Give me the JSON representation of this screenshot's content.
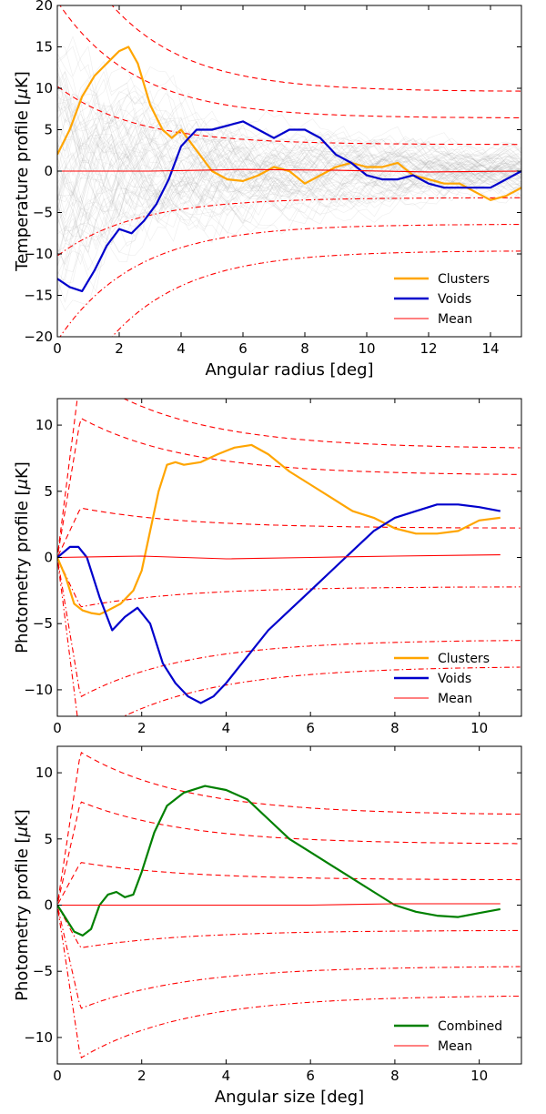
{
  "chart_data": [
    {
      "type": "line",
      "xlabel": "Angular radius [deg]",
      "ylabel": "Temperature profile [$\\mu$K]",
      "xlim": [
        0,
        15
      ],
      "ylim": [
        -20,
        20
      ],
      "xticks": [
        0,
        2,
        4,
        6,
        8,
        10,
        12,
        14
      ],
      "yticks": [
        -20,
        -15,
        -10,
        -5,
        0,
        5,
        10,
        15,
        20
      ],
      "legend": "lower-right",
      "background_simulations": true,
      "series": [
        {
          "name": "Clusters",
          "color": "#FFA500",
          "x": [
            0,
            0.4,
            0.8,
            1.2,
            1.6,
            2.0,
            2.3,
            2.6,
            3.0,
            3.4,
            3.7,
            4.0,
            4.5,
            5.0,
            5.5,
            6.0,
            6.5,
            7.0,
            7.5,
            8.0,
            8.5,
            9.0,
            9.5,
            10.0,
            10.5,
            11.0,
            11.5,
            12.0,
            12.5,
            13.0,
            13.5,
            14.0,
            14.5,
            15.0
          ],
          "y": [
            2,
            5,
            9,
            11.5,
            13,
            14.5,
            15,
            13,
            8,
            5,
            4,
            5,
            2.5,
            0,
            -1,
            -1.2,
            -0.5,
            0.5,
            0,
            -1.5,
            -0.5,
            0.5,
            1,
            0.5,
            0.5,
            1,
            -0.5,
            -1,
            -1.5,
            -1.5,
            -2.5,
            -3.5,
            -3,
            -2
          ]
        },
        {
          "name": "Voids",
          "color": "#0000CC",
          "x": [
            0,
            0.4,
            0.8,
            1.2,
            1.6,
            2.0,
            2.4,
            2.8,
            3.2,
            3.6,
            4.0,
            4.5,
            5.0,
            5.5,
            6.0,
            6.5,
            7.0,
            7.5,
            8.0,
            8.5,
            9.0,
            9.5,
            10.0,
            10.5,
            11.0,
            11.5,
            12.0,
            12.5,
            13.0,
            13.5,
            14.0,
            14.5,
            15.0
          ],
          "y": [
            -13,
            -14,
            -14.5,
            -12,
            -9,
            -7,
            -7.5,
            -6,
            -4,
            -1,
            3,
            5,
            5,
            5.5,
            6,
            5,
            4,
            5,
            5,
            4,
            2,
            1,
            -0.5,
            -1,
            -1,
            -0.5,
            -1.5,
            -2,
            -2,
            -2,
            -2,
            -1,
            0
          ]
        },
        {
          "name": "Mean",
          "color": "#FF0000",
          "x": [
            0,
            3,
            6,
            9,
            12,
            15
          ],
          "y": [
            0,
            0,
            0.2,
            0.1,
            -0.1,
            0
          ]
        }
      ],
      "envelopes": {
        "color": "#FF0000",
        "levels": [
          1,
          2,
          3
        ],
        "amplitude": [
          3.2,
          6.4,
          9.6
        ]
      }
    },
    {
      "type": "line",
      "xlabel": "",
      "ylabel": "Photometry profile [$\\mu$K]",
      "xlim": [
        0,
        11
      ],
      "ylim": [
        -12,
        12
      ],
      "xticks": [
        0,
        2,
        4,
        6,
        8,
        10
      ],
      "yticks": [
        -10,
        -5,
        0,
        5,
        10
      ],
      "legend": "lower-right",
      "series": [
        {
          "name": "Clusters",
          "color": "#FFA500",
          "x": [
            0,
            0.2,
            0.4,
            0.6,
            0.8,
            1.0,
            1.2,
            1.5,
            1.8,
            2.0,
            2.2,
            2.4,
            2.6,
            2.8,
            3.0,
            3.4,
            3.8,
            4.2,
            4.6,
            5.0,
            5.5,
            6.0,
            6.5,
            7.0,
            7.5,
            8.0,
            8.5,
            9.0,
            9.5,
            10.0,
            10.5
          ],
          "y": [
            0,
            -1.5,
            -3.5,
            -4,
            -4.2,
            -4.3,
            -4,
            -3.5,
            -2.5,
            -1,
            2,
            5,
            7,
            7.2,
            7,
            7.2,
            7.8,
            8.3,
            8.5,
            7.8,
            6.5,
            5.5,
            4.5,
            3.5,
            3,
            2.2,
            1.8,
            1.8,
            2,
            2.8,
            3
          ]
        },
        {
          "name": "Voids",
          "color": "#0000CC",
          "x": [
            0,
            0.3,
            0.5,
            0.7,
            1.0,
            1.3,
            1.6,
            1.9,
            2.2,
            2.5,
            2.8,
            3.1,
            3.4,
            3.7,
            4.0,
            4.5,
            5.0,
            5.5,
            6.0,
            6.5,
            7.0,
            7.5,
            8.0,
            8.5,
            9.0,
            9.5,
            10.0,
            10.5
          ],
          "y": [
            0,
            0.8,
            0.8,
            0,
            -3,
            -5.5,
            -4.5,
            -3.8,
            -5,
            -8,
            -9.5,
            -10.5,
            -11,
            -10.5,
            -9.5,
            -7.5,
            -5.5,
            -4,
            -2.5,
            -1,
            0.5,
            2,
            3,
            3.5,
            4,
            4,
            3.8,
            3.5
          ]
        },
        {
          "name": "Mean",
          "color": "#FF0000",
          "x": [
            0,
            2,
            4,
            6,
            8,
            10.5
          ],
          "y": [
            0,
            0.1,
            -0.1,
            0,
            0.1,
            0.2
          ]
        }
      ],
      "envelopes": {
        "color": "#FF0000",
        "levels": [
          1,
          2,
          3
        ],
        "amplitude": [
          2.2,
          6.2,
          8.2
        ]
      }
    },
    {
      "type": "line",
      "xlabel": "Angular size [deg]",
      "ylabel": "Photometry profile [$\\mu$K]",
      "xlim": [
        0,
        11
      ],
      "ylim": [
        -12,
        12
      ],
      "xticks": [
        0,
        2,
        4,
        6,
        8,
        10
      ],
      "yticks": [
        -10,
        -5,
        0,
        5,
        10
      ],
      "legend": "lower-right",
      "series": [
        {
          "name": "Combined",
          "color": "#008000",
          "x": [
            0,
            0.2,
            0.4,
            0.6,
            0.8,
            1.0,
            1.2,
            1.4,
            1.6,
            1.8,
            2.0,
            2.3,
            2.6,
            3.0,
            3.5,
            4.0,
            4.5,
            5.0,
            5.5,
            6.0,
            6.5,
            7.0,
            7.5,
            8.0,
            8.5,
            9.0,
            9.5,
            10.0,
            10.5
          ],
          "y": [
            0,
            -1,
            -2,
            -2.3,
            -1.8,
            0,
            0.8,
            1.0,
            0.6,
            0.8,
            2.5,
            5.5,
            7.5,
            8.5,
            9,
            8.7,
            8,
            6.5,
            5,
            4,
            3,
            2,
            1,
            0,
            -0.5,
            -0.8,
            -0.9,
            -0.6,
            -0.3
          ]
        },
        {
          "name": "Mean",
          "color": "#FF0000",
          "x": [
            0,
            2,
            4,
            6,
            8,
            10.5
          ],
          "y": [
            0,
            0,
            0,
            0,
            0.1,
            0.1
          ]
        }
      ],
      "envelopes": {
        "color": "#FF0000",
        "levels": [
          1,
          2,
          3
        ],
        "amplitude": [
          1.9,
          4.6,
          6.8
        ]
      }
    }
  ]
}
